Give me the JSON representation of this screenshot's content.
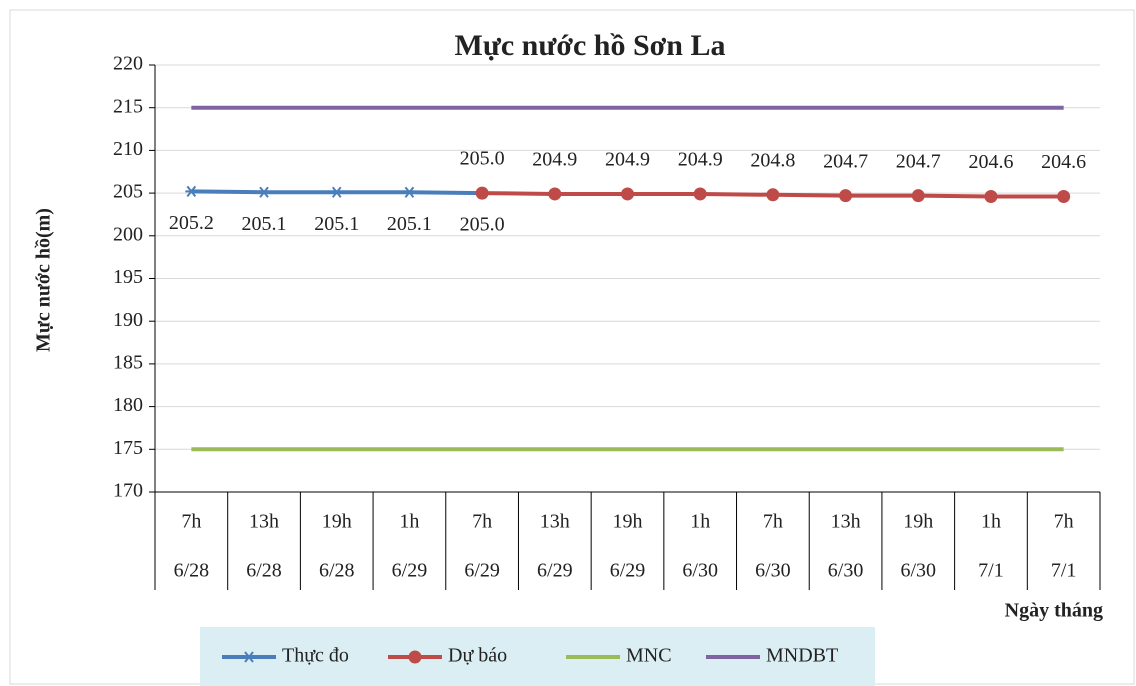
{
  "chart_data": {
    "type": "line",
    "title": "Mực nước hồ Sơn La",
    "y_label": "Mực nước hồ(m)",
    "x_label": "Ngày tháng",
    "categories": [
      "7h",
      "13h",
      "19h",
      "1h",
      "7h",
      "13h",
      "19h",
      "1h",
      "7h",
      "13h",
      "19h",
      "1h",
      "7h"
    ],
    "category_groups": [
      "6/28",
      "6/28",
      "6/28",
      "6/29",
      "6/29",
      "6/29",
      "6/29",
      "6/30",
      "6/30",
      "6/30",
      "6/30",
      "7/1",
      "7/1"
    ],
    "series": [
      {
        "name": "Thực đo",
        "color": "#4a7ebb",
        "marker": "asterisk",
        "label_side": "below",
        "values": [
          205.2,
          205.1,
          205.1,
          205.1,
          205.0,
          null,
          null,
          null,
          null,
          null,
          null,
          null,
          null
        ],
        "value_labels": [
          "205.2",
          "205.1",
          "205.1",
          "205.1",
          "205.0",
          null,
          null,
          null,
          null,
          null,
          null,
          null,
          null
        ]
      },
      {
        "name": "Dự báo",
        "color": "#be4b48",
        "marker": "circle",
        "label_side": "above",
        "values": [
          null,
          null,
          null,
          null,
          205.0,
          204.9,
          204.9,
          204.9,
          204.8,
          204.7,
          204.7,
          204.6,
          204.6
        ],
        "value_labels": [
          null,
          null,
          null,
          null,
          "205.0",
          "204.9",
          "204.9",
          "204.9",
          "204.8",
          "204.7",
          "204.7",
          "204.6",
          "204.6"
        ]
      },
      {
        "name": "MNC",
        "color": "#9bbb59",
        "marker": "none",
        "values": [
          175,
          175,
          175,
          175,
          175,
          175,
          175,
          175,
          175,
          175,
          175,
          175,
          175
        ]
      },
      {
        "name": "MNDBT",
        "color": "#8064a2",
        "marker": "none",
        "values": [
          215,
          215,
          215,
          215,
          215,
          215,
          215,
          215,
          215,
          215,
          215,
          215,
          215
        ]
      }
    ],
    "ylim": [
      170,
      220
    ],
    "yticks": [
      170,
      175,
      180,
      185,
      190,
      195,
      200,
      205,
      210,
      215,
      220
    ],
    "grid": true,
    "legend": "bottom"
  }
}
